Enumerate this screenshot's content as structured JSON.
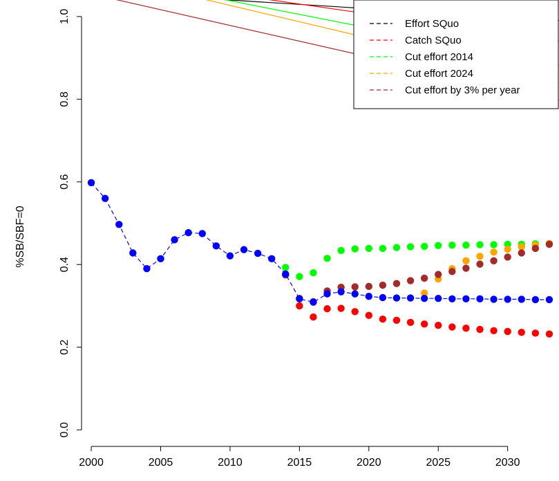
{
  "chart_data": {
    "type": "scatter",
    "title": "",
    "xlabel": "",
    "ylabel": "%SB/SBF=0",
    "xlim": [
      1999.3,
      2033.7
    ],
    "ylim": [
      -0.04,
      1.04
    ],
    "xticks": [
      2000,
      2005,
      2010,
      2015,
      2020,
      2025,
      2030
    ],
    "yticks": [
      0.0,
      0.2,
      0.4,
      0.6,
      0.8,
      1.0
    ],
    "x_tick_labels": [
      "2000",
      "2005",
      "2010",
      "2015",
      "2020",
      "2025",
      "2030"
    ],
    "y_tick_labels": [
      "0.0",
      "0.2",
      "0.4",
      "0.6",
      "0.8",
      "1.0"
    ],
    "legend_position": "top-right",
    "legend": {
      "entries": [
        "Effort SQuo",
        "Catch SQuo",
        "Cut effort 2014",
        "Cut effort 2024",
        "Cut effort by 3% per year"
      ],
      "colors": [
        "#000000",
        "#ff0000",
        "#00ff00",
        "#ffa500",
        "#a52a2a"
      ]
    },
    "series": [
      {
        "color": "#ff0000",
        "line": "none",
        "x": [
          2014,
          2015,
          2016,
          2017,
          2018,
          2019,
          2020,
          2021,
          2022,
          2023,
          2024,
          2025,
          2026,
          2027,
          2028,
          2029,
          2030,
          2031,
          2032,
          2033
        ],
        "y": [
          0.375,
          0.3,
          0.273,
          0.293,
          0.294,
          0.286,
          0.277,
          0.268,
          0.265,
          0.26,
          0.256,
          0.253,
          0.249,
          0.246,
          0.243,
          0.24,
          0.238,
          0.236,
          0.234,
          0.232
        ]
      },
      {
        "color": "#00ff00",
        "line": "none",
        "x": [
          2014,
          2015,
          2016,
          2017,
          2018,
          2019,
          2020,
          2021,
          2022,
          2023,
          2024,
          2025,
          2026,
          2027,
          2028,
          2029,
          2030,
          2031,
          2032,
          2033
        ],
        "y": [
          0.393,
          0.371,
          0.38,
          0.415,
          0.434,
          0.438,
          0.439,
          0.439,
          0.441,
          0.443,
          0.444,
          0.446,
          0.447,
          0.447,
          0.448,
          0.448,
          0.449,
          0.449,
          0.45,
          0.45
        ]
      },
      {
        "color": "#ffa500",
        "line": "none",
        "x": [
          2024,
          2025,
          2026,
          2027,
          2028,
          2029,
          2030,
          2031,
          2032,
          2033
        ],
        "y": [
          0.331,
          0.365,
          0.39,
          0.409,
          0.42,
          0.43,
          0.437,
          0.443,
          0.447,
          0.451
        ]
      },
      {
        "color": "#a52a2a",
        "line": "none",
        "x": [
          2014,
          2015,
          2016,
          2017,
          2018,
          2019,
          2020,
          2021,
          2022,
          2023,
          2024,
          2025,
          2026,
          2027,
          2028,
          2029,
          2030,
          2031,
          2032,
          2033
        ],
        "y": [
          0.375,
          0.318,
          0.31,
          0.336,
          0.345,
          0.346,
          0.347,
          0.35,
          0.354,
          0.361,
          0.367,
          0.376,
          0.383,
          0.391,
          0.401,
          0.409,
          0.418,
          0.428,
          0.439,
          0.449
        ]
      },
      {
        "color": "#0000ff",
        "line": "dashed",
        "x": [
          2000,
          2001,
          2002,
          2003,
          2004,
          2005,
          2006,
          2007,
          2008,
          2009,
          2010,
          2011,
          2012,
          2013,
          2014,
          2015,
          2016,
          2017,
          2018,
          2019,
          2020,
          2021,
          2022,
          2023,
          2024,
          2025,
          2026,
          2027,
          2028,
          2029,
          2030,
          2031,
          2032,
          2033
        ],
        "y": [
          0.598,
          0.56,
          0.497,
          0.428,
          0.39,
          0.414,
          0.46,
          0.477,
          0.475,
          0.445,
          0.421,
          0.436,
          0.427,
          0.414,
          0.377,
          0.317,
          0.309,
          0.329,
          0.334,
          0.329,
          0.323,
          0.32,
          0.319,
          0.319,
          0.318,
          0.318,
          0.317,
          0.317,
          0.317,
          0.316,
          0.316,
          0.316,
          0.315,
          0.315
        ]
      }
    ],
    "reference_lines": [
      {
        "color": "#000000",
        "x": [
          2005.2,
          2033.7
        ],
        "y": [
          1.05,
          0.99
        ]
      },
      {
        "color": "#ff0000",
        "x": [
          2010.9,
          2033.7
        ],
        "y": [
          1.05,
          0.94
        ]
      },
      {
        "color": "#00ff00",
        "x": [
          2008.2,
          2033.7
        ],
        "y": [
          1.05,
          0.882
        ]
      },
      {
        "color": "#ffa500",
        "x": [
          2007.1,
          2033.7
        ],
        "y": [
          1.05,
          0.839
        ]
      },
      {
        "color": "#a52a2a",
        "x": [
          2000.6,
          2033.7
        ],
        "y": [
          1.05,
          0.798
        ]
      }
    ]
  }
}
